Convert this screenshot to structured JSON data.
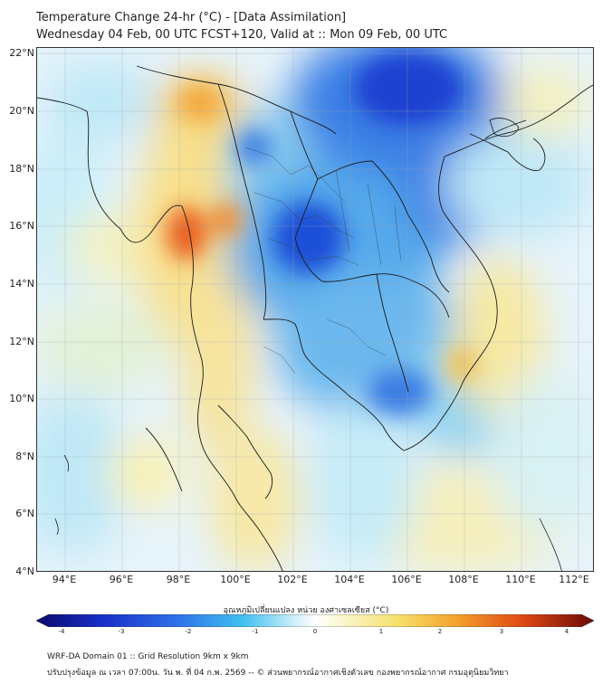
{
  "header": {
    "title": "Temperature Change 24-hr (°C) - [Data Assimilation]",
    "subtitle": "Wednesday 04 Feb, 00 UTC FCST+120, Valid at :: Mon 09 Feb, 00 UTC"
  },
  "map": {
    "lat_labels": [
      "22°N",
      "20°N",
      "18°N",
      "16°N",
      "14°N",
      "12°N",
      "10°N",
      "8°N",
      "6°N",
      "4°N"
    ],
    "lon_labels": [
      "94°E",
      "96°E",
      "98°E",
      "100°E",
      "102°E",
      "104°E",
      "106°E",
      "108°E",
      "110°E",
      "112°E"
    ]
  },
  "colorbar": {
    "title": "อุณหภูมิเปลี่ยนแปลง หน่วย องศาเซลเซียส (°C)",
    "ticks": [
      "-4",
      "-3",
      "-2",
      "-1",
      "0",
      "1",
      "2",
      "3",
      "4"
    ],
    "min": -4,
    "max": 4
  },
  "footer": {
    "line1": "WRF-DA Domain 01 :: Grid Resolution 9km x 9km",
    "line2": "ปรับปรุงข้อมูล ณ เวลา 07:00น. วัน พ. ที่ 04 ก.พ. 2569 -- © ส่วนพยากรณ์อากาศเชิงตัวเลข กองพยากรณ์อากาศ กรมอุตุนิยมวิทยา"
  }
}
